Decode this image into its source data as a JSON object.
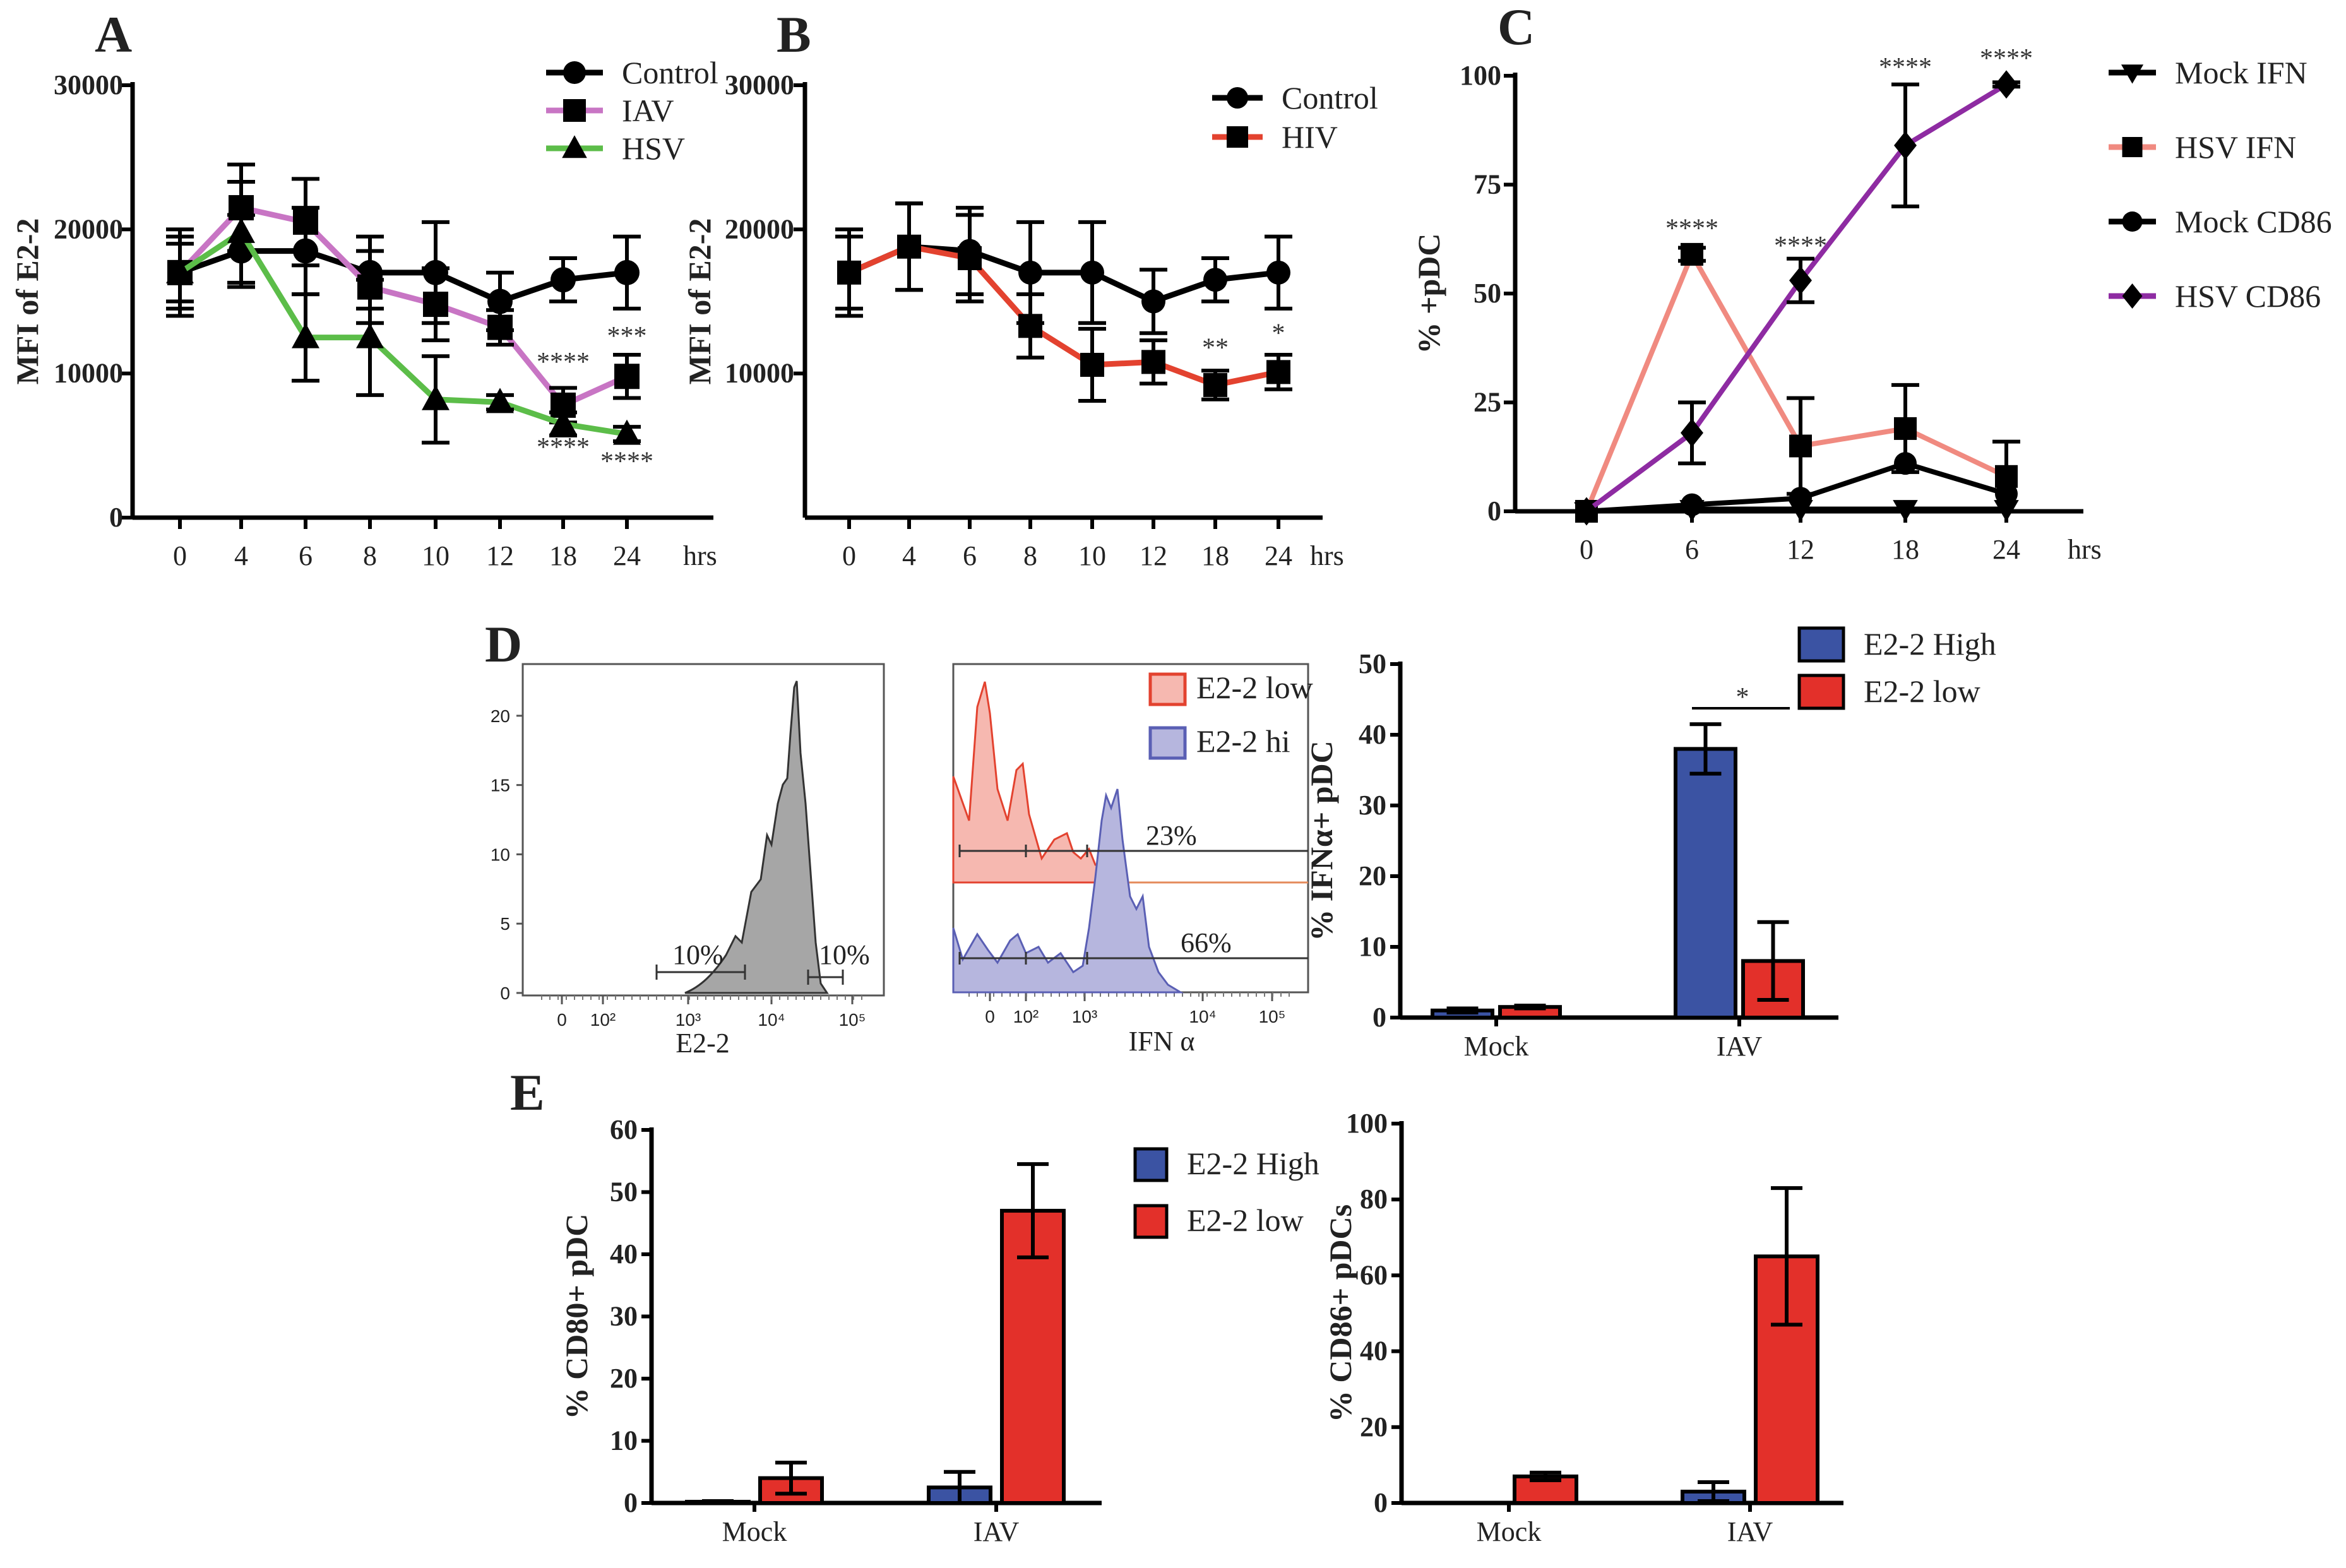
{
  "chart_data": [
    {
      "id": "A",
      "panel_label": "A",
      "type": "line",
      "ylabel": "MFI of E2-2",
      "unit_label": "hrs",
      "x": [
        "0",
        "4",
        "6",
        "8",
        "10",
        "12",
        "18",
        "24"
      ],
      "ylim": [
        0,
        30000
      ],
      "yticks": [
        0,
        10000,
        20000,
        30000
      ],
      "series": [
        {
          "name": "Control",
          "color": "#000000",
          "marker": "circle",
          "values": [
            17000,
            18500,
            18500,
            17000,
            17000,
            15000,
            16500,
            17000
          ],
          "errors": [
            3000,
            2500,
            3000,
            2500,
            3500,
            2000,
            1500,
            2500
          ]
        },
        {
          "name": "IAV",
          "color": "#c875c4",
          "marker": "square",
          "values": [
            17000,
            21500,
            20500,
            16000,
            14800,
            13200,
            7800,
            9800
          ],
          "errors": [
            2500,
            3000,
            3000,
            2500,
            2500,
            1200,
            1200,
            1500
          ]
        },
        {
          "name": "HSV",
          "color": "#5cbd49",
          "marker": "triangle",
          "values": [
            17000,
            19800,
            12500,
            12500,
            8200,
            8000,
            6500,
            5800
          ],
          "errors": [
            2000,
            3500,
            3000,
            4000,
            3000,
            500,
            800,
            500
          ]
        }
      ],
      "annotations": [
        {
          "text": "****",
          "x": "18",
          "y": 10200
        },
        {
          "text": "***",
          "x": "24",
          "y": 12000
        },
        {
          "text": "****",
          "x": "18",
          "y": 4300
        },
        {
          "text": "****",
          "x": "24",
          "y": 3300
        }
      ]
    },
    {
      "id": "B",
      "panel_label": "B",
      "type": "line",
      "ylabel": "MFI of E2-2",
      "unit_label": "hrs",
      "x": [
        "0",
        "4",
        "6",
        "8",
        "10",
        "12",
        "18",
        "24"
      ],
      "ylim": [
        0,
        30000
      ],
      "yticks": [
        10000,
        20000,
        30000
      ],
      "series": [
        {
          "name": "Control",
          "color": "#000000",
          "marker": "circle",
          "values": [
            17000,
            18800,
            18500,
            17000,
            17000,
            15000,
            16500,
            17000
          ],
          "errors": [
            3000,
            3000,
            3000,
            3500,
            3500,
            2200,
            1500,
            2500
          ]
        },
        {
          "name": "HIV",
          "color": "#e3422f",
          "marker": "square",
          "values": [
            17000,
            18800,
            18000,
            13300,
            10600,
            10800,
            9200,
            10100
          ],
          "errors": [
            2500,
            3000,
            3000,
            2200,
            2500,
            1500,
            1000,
            1200
          ]
        }
      ],
      "annotations": [
        {
          "text": "**",
          "x": "18",
          "y": 11200
        },
        {
          "text": "*",
          "x": "24",
          "y": 12200
        }
      ]
    },
    {
      "id": "C",
      "panel_label": "C",
      "type": "line",
      "ylabel": "% +pDC",
      "unit_label": "hrs",
      "x": [
        "0",
        "6",
        "12",
        "18",
        "24"
      ],
      "ylim": [
        0,
        100
      ],
      "yticks": [
        0,
        25,
        50,
        75,
        100
      ],
      "series": [
        {
          "name": "Mock IFN",
          "color": "#000000",
          "marker": "triangle-down",
          "values": [
            0,
            0.5,
            0.5,
            0.5,
            0.5
          ],
          "errors": [
            0,
            0,
            0,
            0,
            0
          ]
        },
        {
          "name": "HSV IFN",
          "color": "#f08a80",
          "marker": "square",
          "values": [
            0,
            59,
            15,
            19,
            8
          ],
          "errors": [
            0,
            1.5,
            11,
            10,
            8
          ]
        },
        {
          "name": "Mock CD86",
          "color": "#000000",
          "marker": "circle",
          "values": [
            0,
            1.5,
            3,
            11,
            4
          ],
          "errors": [
            0,
            0,
            0,
            0,
            0
          ]
        },
        {
          "name": "HSV CD86",
          "color": "#8e2ba2",
          "marker": "diamond",
          "values": [
            0,
            18,
            53,
            84,
            98
          ],
          "errors": [
            0,
            7,
            5,
            14,
            0.5
          ]
        }
      ],
      "annotations": [
        {
          "text": "****",
          "x": "6",
          "y": 63
        },
        {
          "text": "****",
          "x": "12",
          "y": 59
        },
        {
          "text": "****",
          "x": "18",
          "y": 100
        },
        {
          "text": "****",
          "x": "24",
          "y": 102
        }
      ]
    },
    {
      "id": "D1",
      "panel_label": "D",
      "type": "histogram",
      "xlabel": "E2-2",
      "xtick_labels": [
        "0",
        "10²",
        "10³",
        "10⁴",
        "10⁵"
      ],
      "ylim": [
        0,
        23
      ],
      "yticks": [
        0,
        5,
        10,
        15,
        20
      ],
      "gates": [
        {
          "label": "10%",
          "x_from": "10³·⁻⁰·⁴",
          "x_to": "10³·⁵⁵",
          "position": "low"
        },
        {
          "label": "10%",
          "x_from": "10⁴·⁵",
          "x_to": "10⁵",
          "position": "high"
        }
      ],
      "peak_mode": 22.5,
      "fill": "#a6a6a6"
    },
    {
      "id": "D2",
      "type": "histogram-overlay",
      "xlabel": "IFN α",
      "xtick_labels": [
        "0",
        "10²",
        "10³",
        "10⁴",
        "10⁵"
      ],
      "series": [
        {
          "name": "E2-2 low",
          "color": "#e3422f",
          "fill": "#f6b8b0",
          "gate_pct": "23%"
        },
        {
          "name": "E2-2 hi",
          "color": "#5a5fb4",
          "fill": "#b6b6de",
          "gate_pct": "66%"
        }
      ]
    },
    {
      "id": "D3",
      "type": "bar",
      "ylabel": "% IFNα+ pDC",
      "categories": [
        "Mock",
        "IAV"
      ],
      "ylim": [
        0,
        50
      ],
      "yticks": [
        0,
        10,
        20,
        30,
        40,
        50
      ],
      "series": [
        {
          "name": "E2-2 High",
          "color": "#3b53a3",
          "values": [
            1,
            38
          ],
          "errors": [
            0.3,
            3.5
          ]
        },
        {
          "name": "E2-2 low",
          "color": "#e3302a",
          "values": [
            1.5,
            8
          ],
          "errors": [
            0.2,
            5.5
          ]
        }
      ],
      "significance": {
        "text": "*",
        "between": "IAV E2-2 High vs E2-2 low"
      }
    },
    {
      "id": "E1",
      "panel_label": "E",
      "type": "bar",
      "ylabel": "% CD80+ pDC",
      "categories": [
        "Mock",
        "IAV"
      ],
      "ylim": [
        0,
        60
      ],
      "yticks": [
        0,
        10,
        20,
        30,
        40,
        50,
        60
      ],
      "series": [
        {
          "name": "E2-2 High",
          "color": "#3b53a3",
          "values": [
            0.2,
            2.5
          ],
          "errors": [
            0.1,
            2.5
          ]
        },
        {
          "name": "E2-2 low",
          "color": "#e3302a",
          "values": [
            4,
            47
          ],
          "errors": [
            2.5,
            7.5
          ]
        }
      ]
    },
    {
      "id": "E2",
      "type": "bar",
      "ylabel": "% CD86+ pDCs",
      "categories": [
        "Mock",
        "IAV"
      ],
      "ylim": [
        0,
        100
      ],
      "yticks": [
        0,
        20,
        40,
        60,
        80,
        100
      ],
      "series": [
        {
          "name": "E2-2 High",
          "color": "#3b53a3",
          "values": [
            0,
            3
          ],
          "errors": [
            0,
            2.5
          ]
        },
        {
          "name": "E2-2 low",
          "color": "#e3302a",
          "values": [
            7,
            65
          ],
          "errors": [
            1,
            18
          ]
        }
      ]
    }
  ]
}
